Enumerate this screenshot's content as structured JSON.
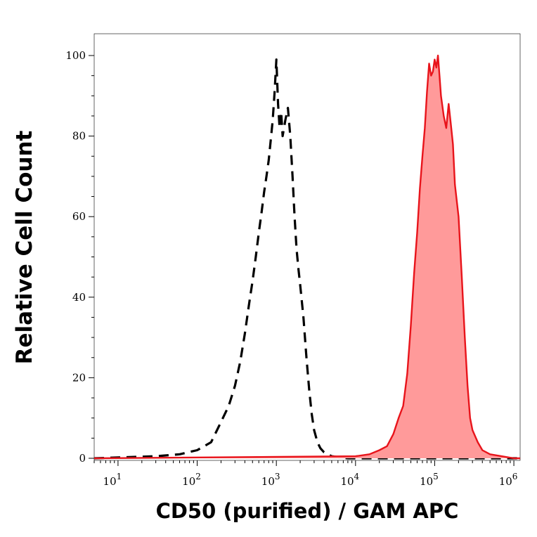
{
  "chart_data": {
    "type": "area",
    "xlabel": "CD50 (purified) / GAM APC",
    "ylabel": "Relative Cell Count",
    "x_scale": "log",
    "xlim": [
      5,
      1200000
    ],
    "ylim": [
      0,
      105
    ],
    "x_tick_labels": [
      {
        "value": 10,
        "base": "10",
        "exp": "1"
      },
      {
        "value": 100,
        "base": "10",
        "exp": "2"
      },
      {
        "value": 1000,
        "base": "10",
        "exp": "3"
      },
      {
        "value": 10000,
        "base": "10",
        "exp": "4"
      },
      {
        "value": 100000,
        "base": "10",
        "exp": "5"
      },
      {
        "value": 1000000,
        "base": "10",
        "exp": "6"
      }
    ],
    "y_ticks": [
      0,
      20,
      40,
      60,
      80,
      100
    ],
    "y_tick_labels": [
      "0",
      "20",
      "40",
      "60",
      "80",
      "100"
    ],
    "series": [
      {
        "style": "dashed",
        "color": "#000000",
        "fill": "none",
        "x": [
          5,
          30,
          60,
          100,
          150,
          200,
          250,
          300,
          350,
          400,
          450,
          500,
          550,
          600,
          650,
          700,
          750,
          800,
          850,
          900,
          950,
          1000,
          1050,
          1100,
          1150,
          1200,
          1300,
          1400,
          1500,
          1600,
          1700,
          1800,
          1900,
          2000,
          2200,
          2400,
          2600,
          2800,
          3000,
          3300,
          3600,
          4000,
          4500,
          5000,
          6000,
          8000,
          10000,
          20000,
          100000,
          1200000
        ],
        "y": [
          0,
          0.5,
          1,
          2,
          4,
          9,
          13,
          18,
          24,
          31,
          38,
          44,
          50,
          56,
          61,
          66,
          70,
          74,
          79,
          84,
          91,
          99,
          88,
          82,
          86,
          80,
          84,
          87,
          80,
          70,
          60,
          52,
          47,
          43,
          35,
          25,
          17,
          11,
          7,
          4,
          2.5,
          1.5,
          1,
          0.5,
          0.3,
          0,
          0,
          0,
          0,
          0
        ]
      },
      {
        "style": "solid",
        "color": "#e8141b",
        "fill": "#ff9a9a",
        "x": [
          5,
          10000,
          15000,
          20000,
          25000,
          30000,
          35000,
          40000,
          45000,
          50000,
          55000,
          60000,
          65000,
          70000,
          75000,
          80000,
          85000,
          90000,
          95000,
          100000,
          105000,
          110000,
          115000,
          120000,
          130000,
          140000,
          150000,
          160000,
          170000,
          180000,
          200000,
          220000,
          240000,
          260000,
          280000,
          300000,
          350000,
          400000,
          500000,
          700000,
          1000000,
          1200000
        ],
        "y": [
          0,
          0.5,
          1,
          2,
          3,
          6,
          10,
          13,
          21,
          33,
          46,
          56,
          67,
          75,
          82,
          91,
          98,
          95,
          96,
          99,
          97,
          100,
          95,
          90,
          85,
          82,
          88,
          83,
          78,
          68,
          60,
          45,
          30,
          18,
          10,
          7,
          4,
          2,
          1,
          0.5,
          0,
          0
        ]
      }
    ]
  }
}
